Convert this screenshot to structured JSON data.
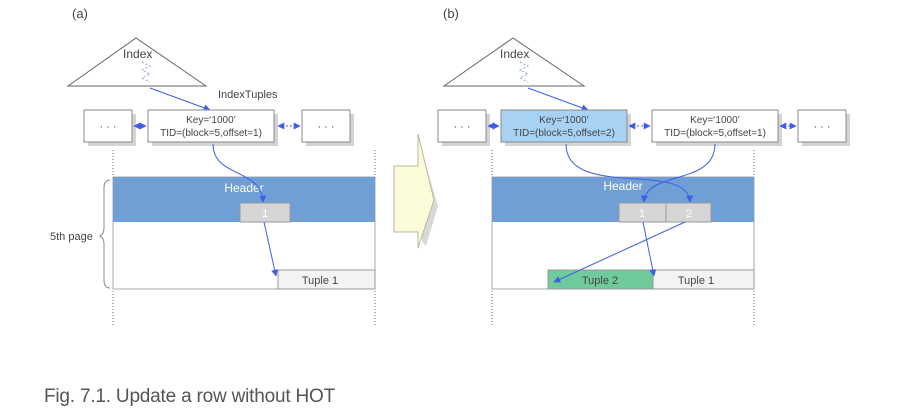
{
  "panel_a": {
    "label": "(a)",
    "index_label": "Index",
    "indextuples_label": "IndexTuples",
    "left_dots": "· · ·",
    "right_dots": "· · ·",
    "key_line": "Key=‘1000’",
    "tid_line": "TID=(block=5,offset=1)",
    "header_label": "Header",
    "pointer_1": "1",
    "page_label": "5th page",
    "tuple_1": "Tuple 1"
  },
  "panel_b": {
    "label": "(b)",
    "index_label": "Index",
    "left_dots": "· · ·",
    "right_dots": "· · ·",
    "new_key_line": "Key=‘1000’",
    "new_tid_line": "TID=(block=5,offset=2)",
    "old_key_line": "Key=‘1000’",
    "old_tid_line": "TID=(block=5,offset=1)",
    "header_label": "Header",
    "pointer_1": "1",
    "pointer_2": "2",
    "tuple_2": "Tuple  2",
    "tuple_1": "Tuple 1"
  },
  "caption": "Fig. 7.1. Update a row without HOT",
  "colors": {
    "header_blue": "#6f9fd4",
    "new_index_tuple": "#a8d2f4",
    "new_tuple_green": "#6fcb9c",
    "arrow_blue": "#3f5ee6",
    "transition_arrow": "#fcfcd8"
  }
}
